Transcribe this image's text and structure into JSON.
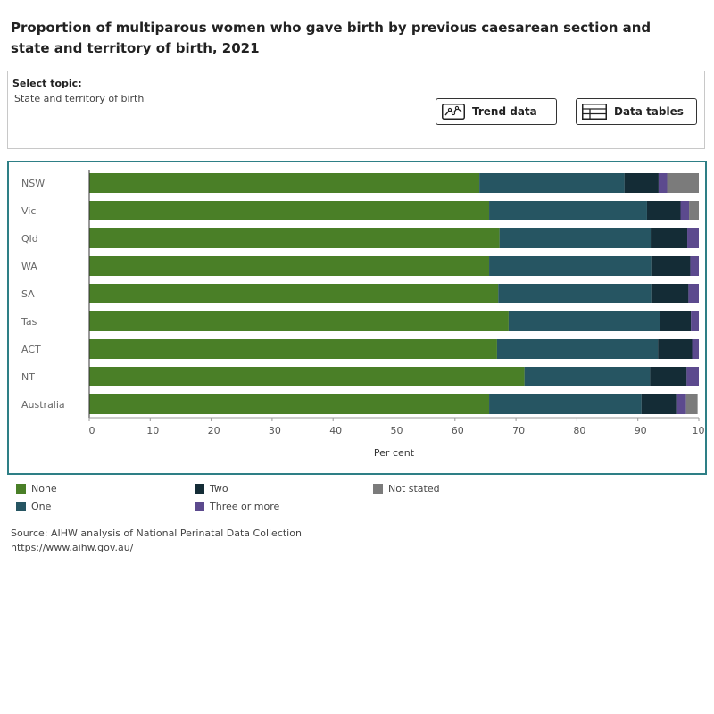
{
  "page": {
    "title": "Proportion of multiparous women who gave birth by previous caesarean section and state and territory of birth, 2021"
  },
  "controls": {
    "select_label": "Select topic:",
    "select_value": "State and territory of birth",
    "trend_button": "Trend data",
    "tables_button": "Data tables"
  },
  "source": {
    "line1": "Source: AIHW analysis of National Perinatal Data Collection",
    "line2": "https://www.aihw.gov.au/"
  },
  "colors": {
    "none": "#4a7f27",
    "one": "#265562",
    "two": "#142c36",
    "three": "#5c4a8e",
    "not_stated": "#7b7b7b"
  },
  "chart_data": {
    "type": "bar",
    "orientation": "horizontal",
    "stacked": true,
    "title": "",
    "xlabel": "Per cent",
    "ylabel": "",
    "xlim": [
      0,
      100
    ],
    "xticks": [
      "0",
      "10",
      "20",
      "30",
      "40",
      "50",
      "60",
      "70",
      "80",
      "90",
      "100"
    ],
    "categories": [
      "NSW",
      "Vic",
      "Qld",
      "WA",
      "SA",
      "Tas",
      "ACT",
      "NT",
      "Australia"
    ],
    "legend_position": "bottom",
    "series": [
      {
        "name": "None",
        "color": "#4a7f27",
        "values": [
          64.0,
          65.6,
          67.3,
          65.6,
          67.1,
          68.8,
          66.9,
          71.4,
          65.6
        ]
      },
      {
        "name": "One",
        "color": "#265562",
        "values": [
          23.8,
          25.9,
          24.8,
          26.6,
          25.1,
          24.8,
          26.4,
          20.6,
          25.0
        ]
      },
      {
        "name": "Two",
        "color": "#142c36",
        "values": [
          5.6,
          5.5,
          6.0,
          6.4,
          6.1,
          5.1,
          5.6,
          6.0,
          5.7
        ]
      },
      {
        "name": "Three or more",
        "color": "#5c4a8e",
        "values": [
          1.4,
          1.4,
          1.9,
          1.4,
          1.7,
          1.3,
          1.1,
          2.0,
          1.6
        ]
      },
      {
        "name": "Not stated",
        "color": "#7b7b7b",
        "values": [
          5.2,
          1.6,
          0.0,
          0.0,
          0.0,
          0.0,
          0.0,
          0.0,
          1.9
        ]
      }
    ]
  }
}
